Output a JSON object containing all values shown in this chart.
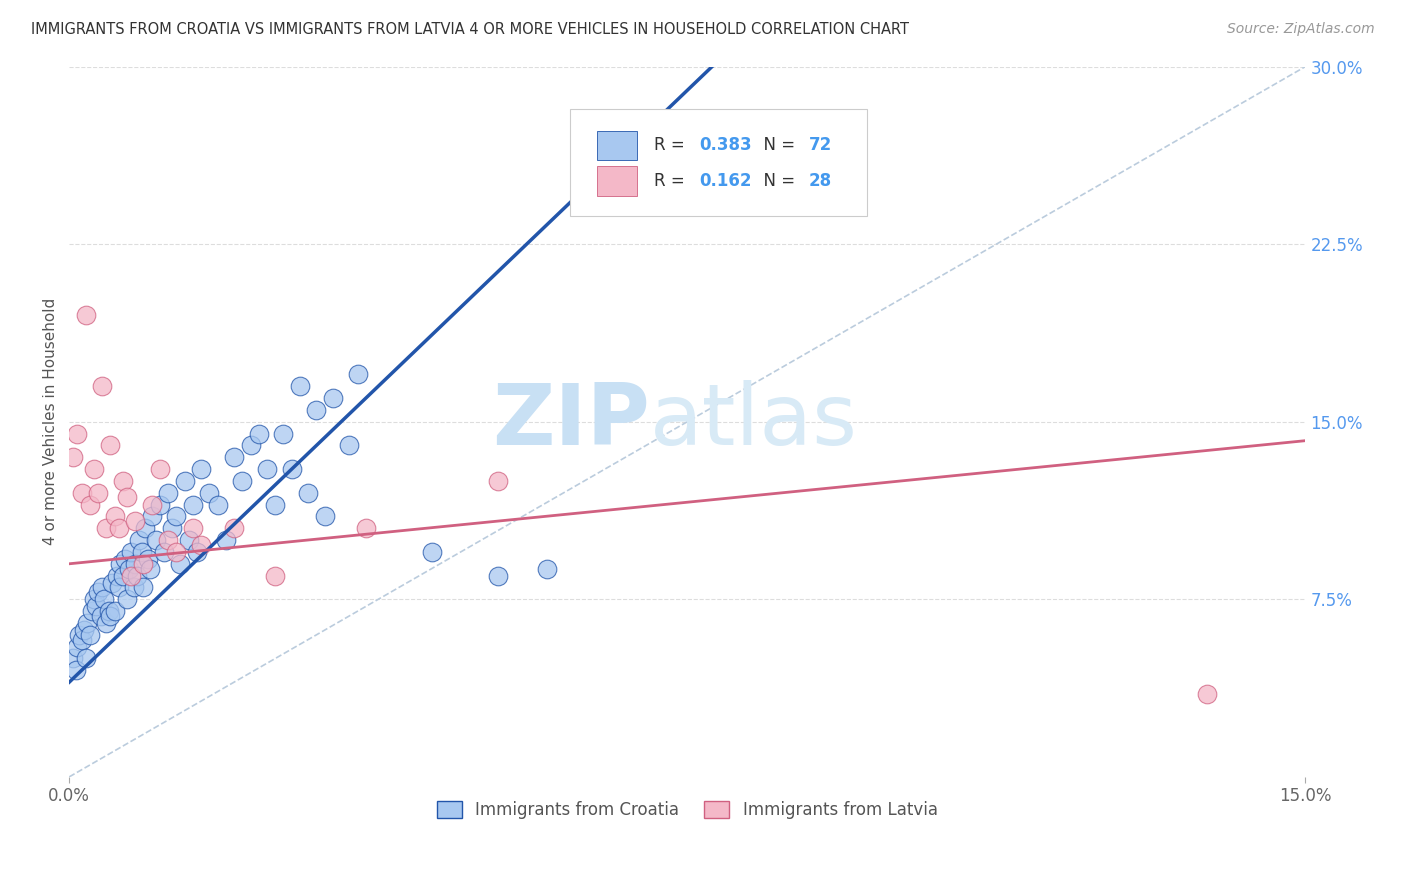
{
  "title": "IMMIGRANTS FROM CROATIA VS IMMIGRANTS FROM LATVIA 4 OR MORE VEHICLES IN HOUSEHOLD CORRELATION CHART",
  "source": "Source: ZipAtlas.com",
  "ylabel": "4 or more Vehicles in Household",
  "x_tick_labels": [
    "0.0%",
    "15.0%"
  ],
  "x_tick_values": [
    0.0,
    15.0
  ],
  "y_tick_labels": [
    "7.5%",
    "15.0%",
    "22.5%",
    "30.0%"
  ],
  "y_tick_values": [
    7.5,
    15.0,
    22.5,
    30.0
  ],
  "xlim": [
    0.0,
    15.0
  ],
  "ylim": [
    0.0,
    30.0
  ],
  "legend_label_1": "Immigrants from Croatia",
  "legend_label_2": "Immigrants from Latvia",
  "R1": "0.383",
  "N1": "72",
  "R2": "0.162",
  "N2": "28",
  "color_croatia": "#A8C8F0",
  "color_latvia": "#F4B8C8",
  "line_color_croatia": "#2255AA",
  "line_color_latvia": "#D06080",
  "watermark_zip": "ZIP",
  "watermark_atlas": "atlas",
  "watermark_color": "#C8E0F4",
  "croatia_line_x0": 0.0,
  "croatia_line_y0": 4.0,
  "croatia_line_x1": 3.6,
  "croatia_line_y1": 16.0,
  "latvia_line_x0": 0.0,
  "latvia_line_y0": 9.0,
  "latvia_line_x1": 15.0,
  "latvia_line_y1": 14.2,
  "diag_line_color": "#BBCCDD",
  "croatia_x": [
    0.05,
    0.08,
    0.1,
    0.12,
    0.15,
    0.18,
    0.2,
    0.22,
    0.25,
    0.28,
    0.3,
    0.32,
    0.35,
    0.38,
    0.4,
    0.42,
    0.45,
    0.48,
    0.5,
    0.52,
    0.55,
    0.58,
    0.6,
    0.62,
    0.65,
    0.68,
    0.7,
    0.72,
    0.75,
    0.78,
    0.8,
    0.82,
    0.85,
    0.88,
    0.9,
    0.92,
    0.95,
    0.98,
    1.0,
    1.05,
    1.1,
    1.15,
    1.2,
    1.25,
    1.3,
    1.35,
    1.4,
    1.45,
    1.5,
    1.55,
    1.6,
    1.7,
    1.8,
    1.9,
    2.0,
    2.1,
    2.2,
    2.3,
    2.4,
    2.5,
    2.6,
    2.7,
    2.8,
    2.9,
    3.0,
    3.1,
    3.2,
    3.4,
    3.5,
    4.4,
    5.2,
    5.8
  ],
  "croatia_y": [
    5.0,
    4.5,
    5.5,
    6.0,
    5.8,
    6.2,
    5.0,
    6.5,
    6.0,
    7.0,
    7.5,
    7.2,
    7.8,
    6.8,
    8.0,
    7.5,
    6.5,
    7.0,
    6.8,
    8.2,
    7.0,
    8.5,
    8.0,
    9.0,
    8.5,
    9.2,
    7.5,
    8.8,
    9.5,
    8.0,
    9.0,
    8.5,
    10.0,
    9.5,
    8.0,
    10.5,
    9.2,
    8.8,
    11.0,
    10.0,
    11.5,
    9.5,
    12.0,
    10.5,
    11.0,
    9.0,
    12.5,
    10.0,
    11.5,
    9.5,
    13.0,
    12.0,
    11.5,
    10.0,
    13.5,
    12.5,
    14.0,
    14.5,
    13.0,
    11.5,
    14.5,
    13.0,
    16.5,
    12.0,
    15.5,
    11.0,
    16.0,
    14.0,
    17.0,
    9.5,
    8.5,
    8.8
  ],
  "latvia_x": [
    0.05,
    0.1,
    0.15,
    0.2,
    0.25,
    0.3,
    0.35,
    0.4,
    0.45,
    0.5,
    0.55,
    0.6,
    0.65,
    0.7,
    0.75,
    0.8,
    0.9,
    1.0,
    1.1,
    1.2,
    1.3,
    1.5,
    1.6,
    2.0,
    2.5,
    3.6,
    5.2,
    13.8
  ],
  "latvia_y": [
    13.5,
    14.5,
    12.0,
    19.5,
    11.5,
    13.0,
    12.0,
    16.5,
    10.5,
    14.0,
    11.0,
    10.5,
    12.5,
    11.8,
    8.5,
    10.8,
    9.0,
    11.5,
    13.0,
    10.0,
    9.5,
    10.5,
    9.8,
    10.5,
    8.5,
    10.5,
    12.5,
    3.5
  ]
}
